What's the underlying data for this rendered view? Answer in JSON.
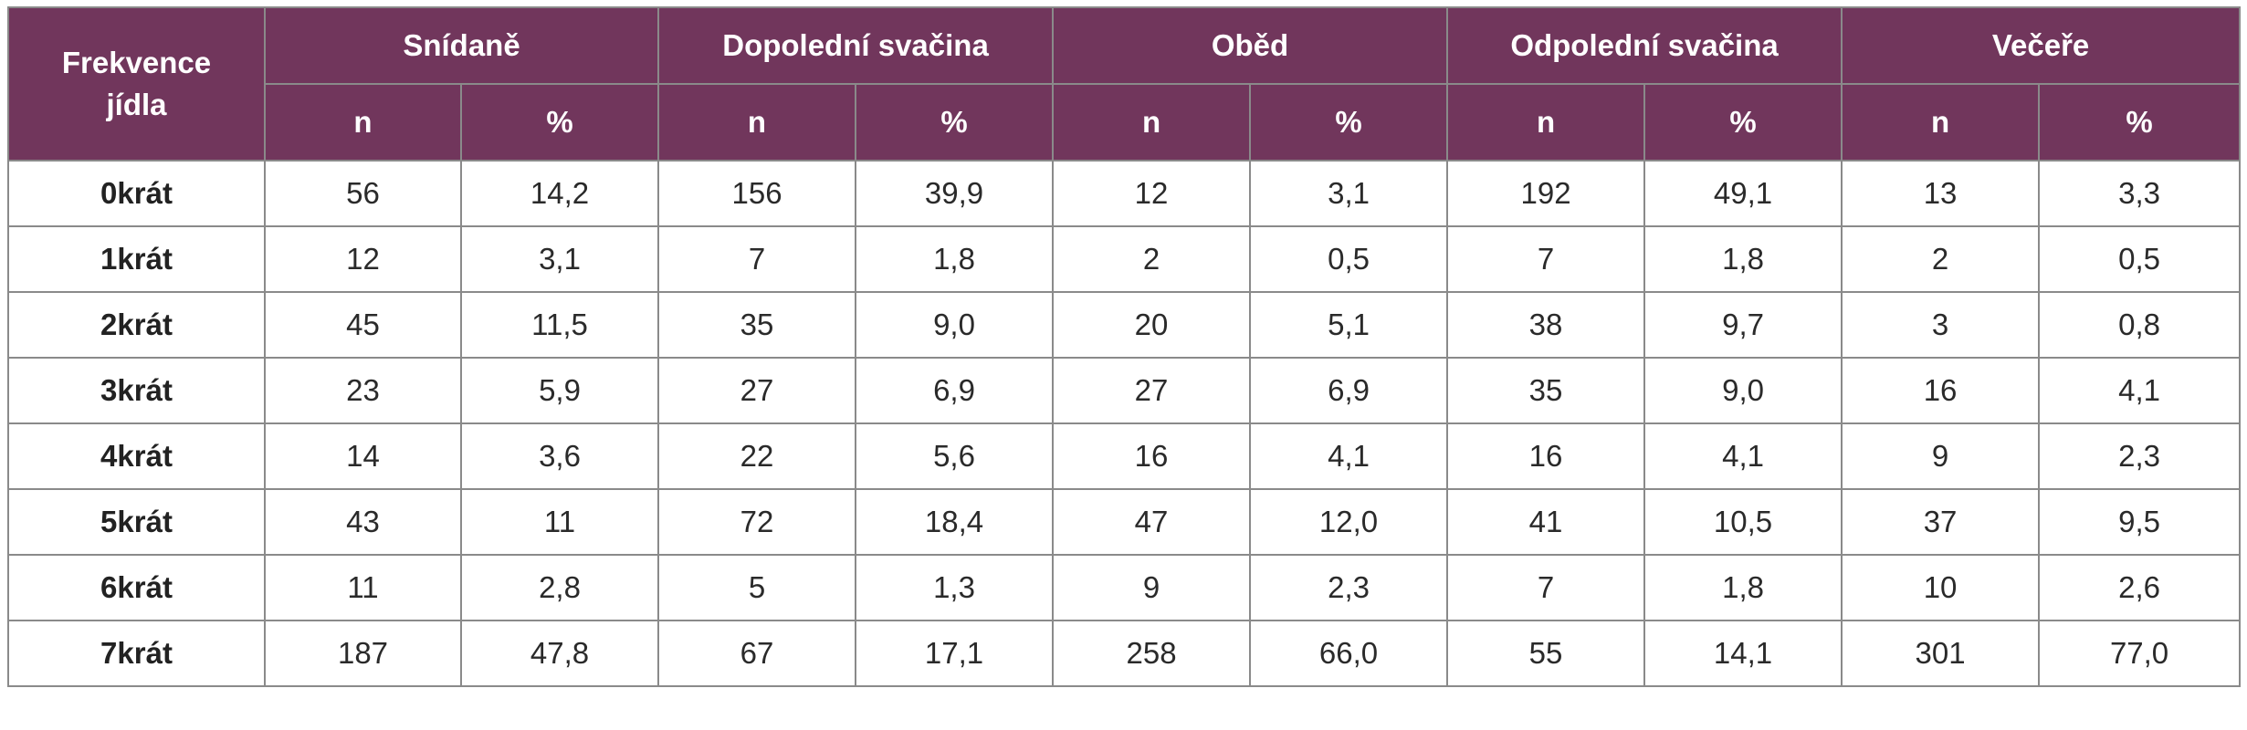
{
  "table": {
    "corner_label_line1": "Frekvence",
    "corner_label_line2": "jídla",
    "meals": [
      "Snídaně",
      "Dopolední svačina",
      "Oběd",
      "Odpolední svačina",
      "Večeře"
    ],
    "subheaders": [
      "n",
      "%",
      "n",
      "%",
      "n",
      "%",
      "n",
      "%",
      "n",
      "%"
    ],
    "rows": [
      {
        "label": "0krát",
        "values": [
          "56",
          "14,2",
          "156",
          "39,9",
          "12",
          "3,1",
          "192",
          "49,1",
          "13",
          "3,3"
        ]
      },
      {
        "label": "1krát",
        "values": [
          "12",
          "3,1",
          "7",
          "1,8",
          "2",
          "0,5",
          "7",
          "1,8",
          "2",
          "0,5"
        ]
      },
      {
        "label": "2krát",
        "values": [
          "45",
          "11,5",
          "35",
          "9,0",
          "20",
          "5,1",
          "38",
          "9,7",
          "3",
          "0,8"
        ]
      },
      {
        "label": "3krát",
        "values": [
          "23",
          "5,9",
          "27",
          "6,9",
          "27",
          "6,9",
          "35",
          "9,0",
          "16",
          "4,1"
        ]
      },
      {
        "label": "4krát",
        "values": [
          "14",
          "3,6",
          "22",
          "5,6",
          "16",
          "4,1",
          "16",
          "4,1",
          "9",
          "2,3"
        ]
      },
      {
        "label": "5krát",
        "values": [
          "43",
          "11",
          "72",
          "18,4",
          "47",
          "12,0",
          "41",
          "10,5",
          "37",
          "9,5"
        ]
      },
      {
        "label": "6krát",
        "values": [
          "11",
          "2,8",
          "5",
          "1,3",
          "9",
          "2,3",
          "7",
          "1,8",
          "10",
          "2,6"
        ]
      },
      {
        "label": "7krát",
        "values": [
          "187",
          "47,8",
          "67",
          "17,1",
          "258",
          "66,0",
          "55",
          "14,1",
          "301",
          "77,0"
        ]
      }
    ],
    "colors": {
      "header_background": "#71365c",
      "header_text": "#ffffff",
      "border": "#8a8a8a"
    }
  }
}
